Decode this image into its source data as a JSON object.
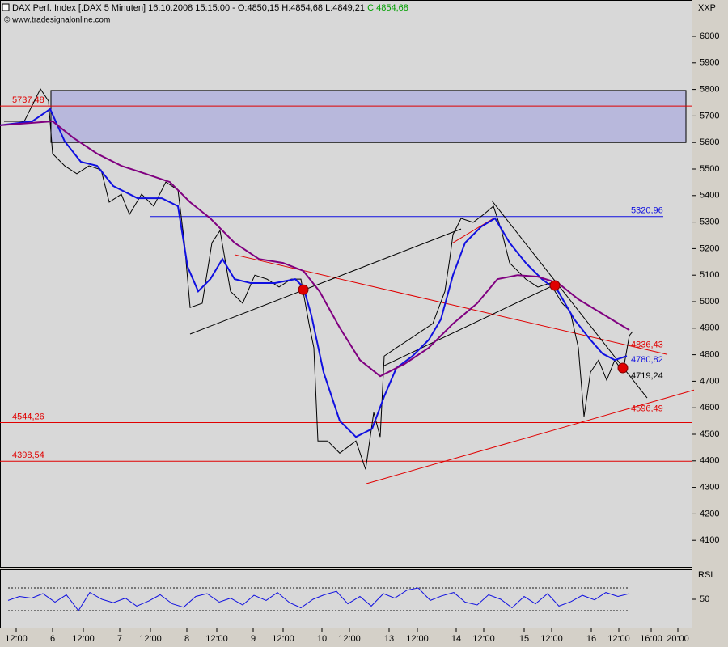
{
  "chart_data": [
    {
      "type": "line",
      "title": "DAX Perf. Index [.DAX  5 Minuten] 16.10.2008 15:15:00 - O:4850,15 H:4854,68 L:4849,21",
      "title_close": "C:4854,68",
      "source": "© www.tradesignalonline.com",
      "symbol": "XXP",
      "xlim": [
        0,
        855
      ],
      "ylim": [
        4000,
        6125
      ],
      "yticks": [
        4100,
        4200,
        4300,
        4400,
        4500,
        4600,
        4700,
        4800,
        4900,
        5000,
        5100,
        5200,
        5300,
        5400,
        5500,
        5600,
        5700,
        5800,
        5900,
        6000
      ],
      "series": [
        {
          "color": "#000000",
          "x": [
            5,
            30,
            50,
            60,
            65,
            80,
            95,
            110,
            125,
            135,
            150,
            160,
            175,
            190,
            205,
            220,
            228,
            235,
            250,
            262,
            272,
            285,
            300,
            315,
            330,
            345,
            360,
            372,
            382,
            388,
            393,
            405,
            420,
            440,
            452,
            462,
            470,
            475,
            490,
            505,
            520,
            535,
            550,
            556,
            560,
            570,
            585,
            598,
            610,
            620,
            630,
            640,
            650,
            665,
            680,
            695,
            705,
            715,
            722,
            730,
            740,
            750,
            760,
            770,
            778,
            782
          ],
          "values": [
            5680,
            5680,
            5802,
            5756,
            5558,
            5512,
            5482,
            5512,
            5497,
            5375,
            5405,
            5329,
            5405,
            5360,
            5451,
            5421,
            5222,
            4978,
            4994,
            5222,
            5268,
            5039,
            4994,
            5100,
            5085,
            5055,
            5085,
            5085,
            4917,
            4826,
            4475,
            4475,
            4429,
            4475,
            4368,
            4582,
            4490,
            4795,
            4826,
            4856,
            4887,
            4917,
            5039,
            5161,
            5253,
            5314,
            5299,
            5329,
            5360,
            5268,
            5146,
            5116,
            5085,
            5055,
            5070,
            4994,
            4963,
            4826,
            4567,
            4734,
            4780,
            4704,
            4780,
            4734,
            4872,
            4887
          ]
        },
        {
          "color": "#1010e0",
          "x": [
            0,
            40,
            62,
            80,
            100,
            120,
            140,
            170,
            200,
            220,
            232,
            245,
            260,
            275,
            290,
            310,
            340,
            365,
            375,
            385,
            400,
            420,
            440,
            460,
            475,
            490,
            510,
            530,
            545,
            560,
            575,
            595,
            612,
            630,
            650,
            670,
            690,
            710,
            730,
            745,
            760,
            775
          ],
          "values": [
            5665,
            5680,
            5726,
            5604,
            5527,
            5512,
            5436,
            5390,
            5390,
            5360,
            5131,
            5039,
            5085,
            5161,
            5085,
            5070,
            5070,
            5085,
            5055,
            4948,
            4734,
            4551,
            4490,
            4521,
            4643,
            4750,
            4795,
            4856,
            4933,
            5100,
            5222,
            5283,
            5314,
            5222,
            5146,
            5085,
            5039,
            4933,
            4856,
            4804,
            4780,
            4795
          ]
        },
        {
          "color": "#800080",
          "x": [
            0,
            40,
            65,
            90,
            120,
            150,
            180,
            210,
            235,
            260,
            290,
            320,
            350,
            375,
            395,
            420,
            445,
            470,
            500,
            530,
            560,
            590,
            615,
            640,
            665,
            690,
            715,
            740,
            760,
            778
          ],
          "values": [
            5665,
            5674,
            5680,
            5619,
            5558,
            5512,
            5482,
            5451,
            5375,
            5314,
            5222,
            5161,
            5146,
            5116,
            5039,
            4902,
            4780,
            4719,
            4765,
            4826,
            4917,
            4994,
            5085,
            5100,
            5094,
            5070,
            5009,
            4963,
            4926,
            4893
          ]
        }
      ],
      "zone": {
        "x": [
          63,
          848
        ],
        "values": [
          5600,
          5796
        ],
        "color": "#b8b8dc"
      },
      "levels": [
        {
          "value": 5737.48,
          "label": "5737,48",
          "color": "#e00000",
          "x": [
            0,
            855
          ]
        },
        {
          "value": 5320.96,
          "label": "5320,96",
          "color": "#1010e0",
          "x": [
            186,
            820
          ]
        },
        {
          "value": 4544.26,
          "label": "4544,26",
          "color": "#e00000",
          "x": [
            0,
            855
          ]
        },
        {
          "value": 4398.54,
          "label": "4398,54",
          "color": "#e00000",
          "x": [
            0,
            855
          ]
        }
      ],
      "annotations": [
        {
          "value": 4836.43,
          "label": "4836,43",
          "color": "#e00000"
        },
        {
          "value": 4780.82,
          "label": "4780,82",
          "color": "#1010e0"
        },
        {
          "value": 4719.24,
          "label": "4719,24",
          "color": "#000000"
        },
        {
          "value": 4596.49,
          "label": "4596,49",
          "color": "#e00000"
        }
      ],
      "trendlines": [
        {
          "x": [
            290,
            825
          ],
          "values": [
            5177,
            4801
          ],
          "color": "#e00000"
        },
        {
          "x": [
            235,
            570
          ],
          "values": [
            4878,
            5274
          ],
          "color": "#000000"
        },
        {
          "x": [
            475,
            690
          ],
          "values": [
            4759,
            5070
          ],
          "color": "#000000"
        },
        {
          "x": [
            608,
            800
          ],
          "values": [
            5381,
            4637
          ],
          "color": "#000000"
        },
        {
          "x": [
            453,
            858
          ],
          "values": [
            4314,
            4667
          ],
          "color": "#e00000"
        },
        {
          "x": [
            560,
            610
          ],
          "values": [
            5222,
            5314
          ],
          "color": "#e00000"
        }
      ],
      "markers": {
        "x": [
          375,
          686,
          770
        ],
        "values": [
          5045,
          5061,
          4750
        ],
        "color": "#e00000"
      }
    },
    {
      "type": "line",
      "title": "RSI",
      "xlim": [
        0,
        855
      ],
      "ylim": [
        0,
        100
      ],
      "yticks": [
        50
      ],
      "levels": [
        70,
        30
      ],
      "xticks": [
        {
          "value": 20,
          "label": "12:00"
        },
        {
          "value": 65,
          "label": "6"
        },
        {
          "value": 103,
          "label": "12:00"
        },
        {
          "value": 148,
          "label": "7"
        },
        {
          "value": 186,
          "label": "12:00"
        },
        {
          "value": 231,
          "label": "8"
        },
        {
          "value": 268,
          "label": "12:00"
        },
        {
          "value": 313,
          "label": "9"
        },
        {
          "value": 350,
          "label": "12:00"
        },
        {
          "value": 398,
          "label": "10"
        },
        {
          "value": 432,
          "label": "12:00"
        },
        {
          "value": 481,
          "label": "13"
        },
        {
          "value": 516,
          "label": "12:00"
        },
        {
          "value": 564,
          "label": "14"
        },
        {
          "value": 598,
          "label": "12:00"
        },
        {
          "value": 648,
          "label": "15"
        },
        {
          "value": 682,
          "label": "12:00"
        },
        {
          "value": 731,
          "label": "16"
        },
        {
          "value": 765,
          "label": "12:00"
        },
        {
          "value": 805,
          "label": "16:00"
        },
        {
          "value": 838,
          "label": "20:00"
        }
      ],
      "series": [
        {
          "color": "#1010e0",
          "x": [
            10,
            24,
            39,
            53,
            68,
            82,
            97,
            111,
            126,
            140,
            155,
            169,
            184,
            198,
            213,
            227,
            242,
            256,
            271,
            285,
            300,
            314,
            329,
            343,
            358,
            372,
            387,
            401,
            416,
            430,
            445,
            459,
            474,
            488,
            503,
            517,
            532,
            546,
            561,
            575,
            590,
            604,
            619,
            633,
            648,
            662,
            677,
            691,
            706,
            720,
            735,
            749,
            764,
            778
          ],
          "values": [
            48,
            55,
            52,
            60,
            45,
            58,
            30,
            62,
            50,
            44,
            52,
            38,
            47,
            58,
            42,
            36,
            55,
            60,
            45,
            52,
            40,
            57,
            48,
            62,
            44,
            35,
            50,
            58,
            64,
            42,
            55,
            38,
            60,
            52,
            66,
            70,
            48,
            56,
            62,
            45,
            40,
            58,
            50,
            35,
            55,
            42,
            60,
            38,
            46,
            57,
            49,
            62,
            55,
            60
          ]
        }
      ]
    }
  ]
}
